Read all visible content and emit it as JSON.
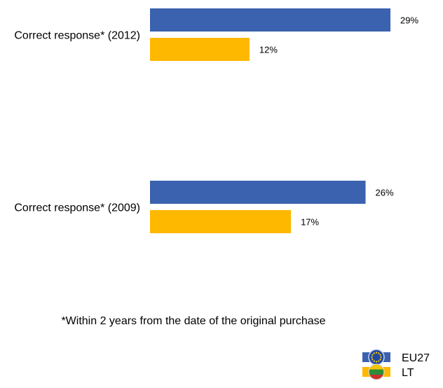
{
  "chart_data": {
    "type": "bar",
    "orientation": "horizontal",
    "categories": [
      "Correct response* (2012)",
      "Correct response* (2009)"
    ],
    "series": [
      {
        "name": "EU27",
        "values": [
          29,
          26
        ],
        "color": "#3A62AE",
        "legend_icon": "eu-flag-icon"
      },
      {
        "name": "LT",
        "values": [
          12,
          17
        ],
        "color": "#FFB800",
        "legend_icon": "lithuania-flag-icon"
      }
    ],
    "value_format": "{v}%",
    "xlim": [
      0,
      30
    ],
    "grid": false,
    "legend_position": "bottom-right"
  },
  "footnote": "*Within 2 years from the date of the original purchase"
}
